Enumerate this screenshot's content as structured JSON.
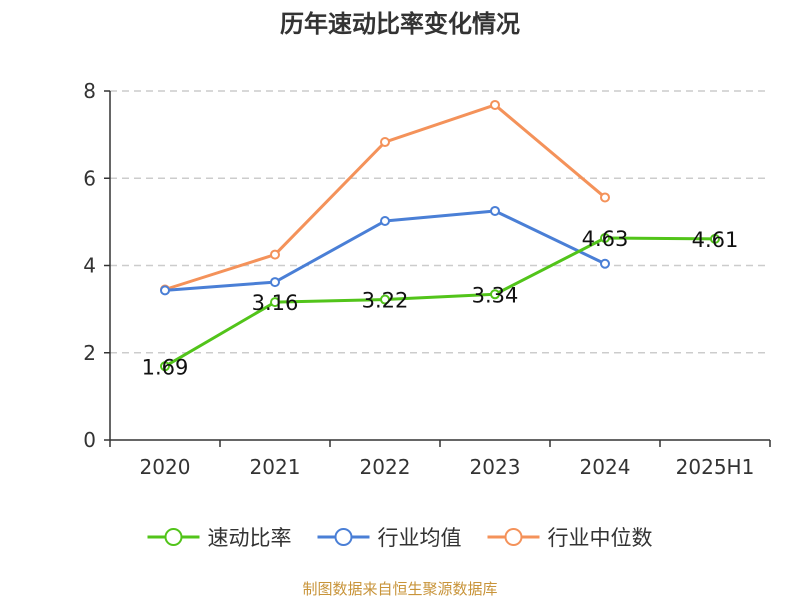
{
  "chart_data": {
    "type": "line",
    "title": "历年速动比率变化情况",
    "xlabel": "",
    "ylabel": "",
    "categories": [
      "2020",
      "2021",
      "2022",
      "2023",
      "2024",
      "2025H1"
    ],
    "ylim": [
      0,
      8
    ],
    "yticks": [
      "0",
      "2",
      "4",
      "6",
      "8"
    ],
    "grid": true,
    "legend_position": "bottom",
    "series": [
      {
        "name": "速动比率",
        "color": "#52c41a",
        "values": [
          1.69,
          3.16,
          3.22,
          3.34,
          4.63,
          4.61
        ],
        "labels": [
          "1.69",
          "3.16",
          "3.22",
          "3.34",
          "4.63",
          "4.61"
        ]
      },
      {
        "name": "行业均值",
        "color": "#4a7fd6",
        "values": [
          3.43,
          3.62,
          5.02,
          5.25,
          4.04,
          null
        ]
      },
      {
        "name": "行业中位数",
        "color": "#f4925a",
        "values": [
          3.45,
          4.25,
          6.83,
          7.68,
          5.56,
          null
        ]
      }
    ],
    "source": "制图数据来自恒生聚源数据库",
    "source_color": "#c8943a"
  }
}
